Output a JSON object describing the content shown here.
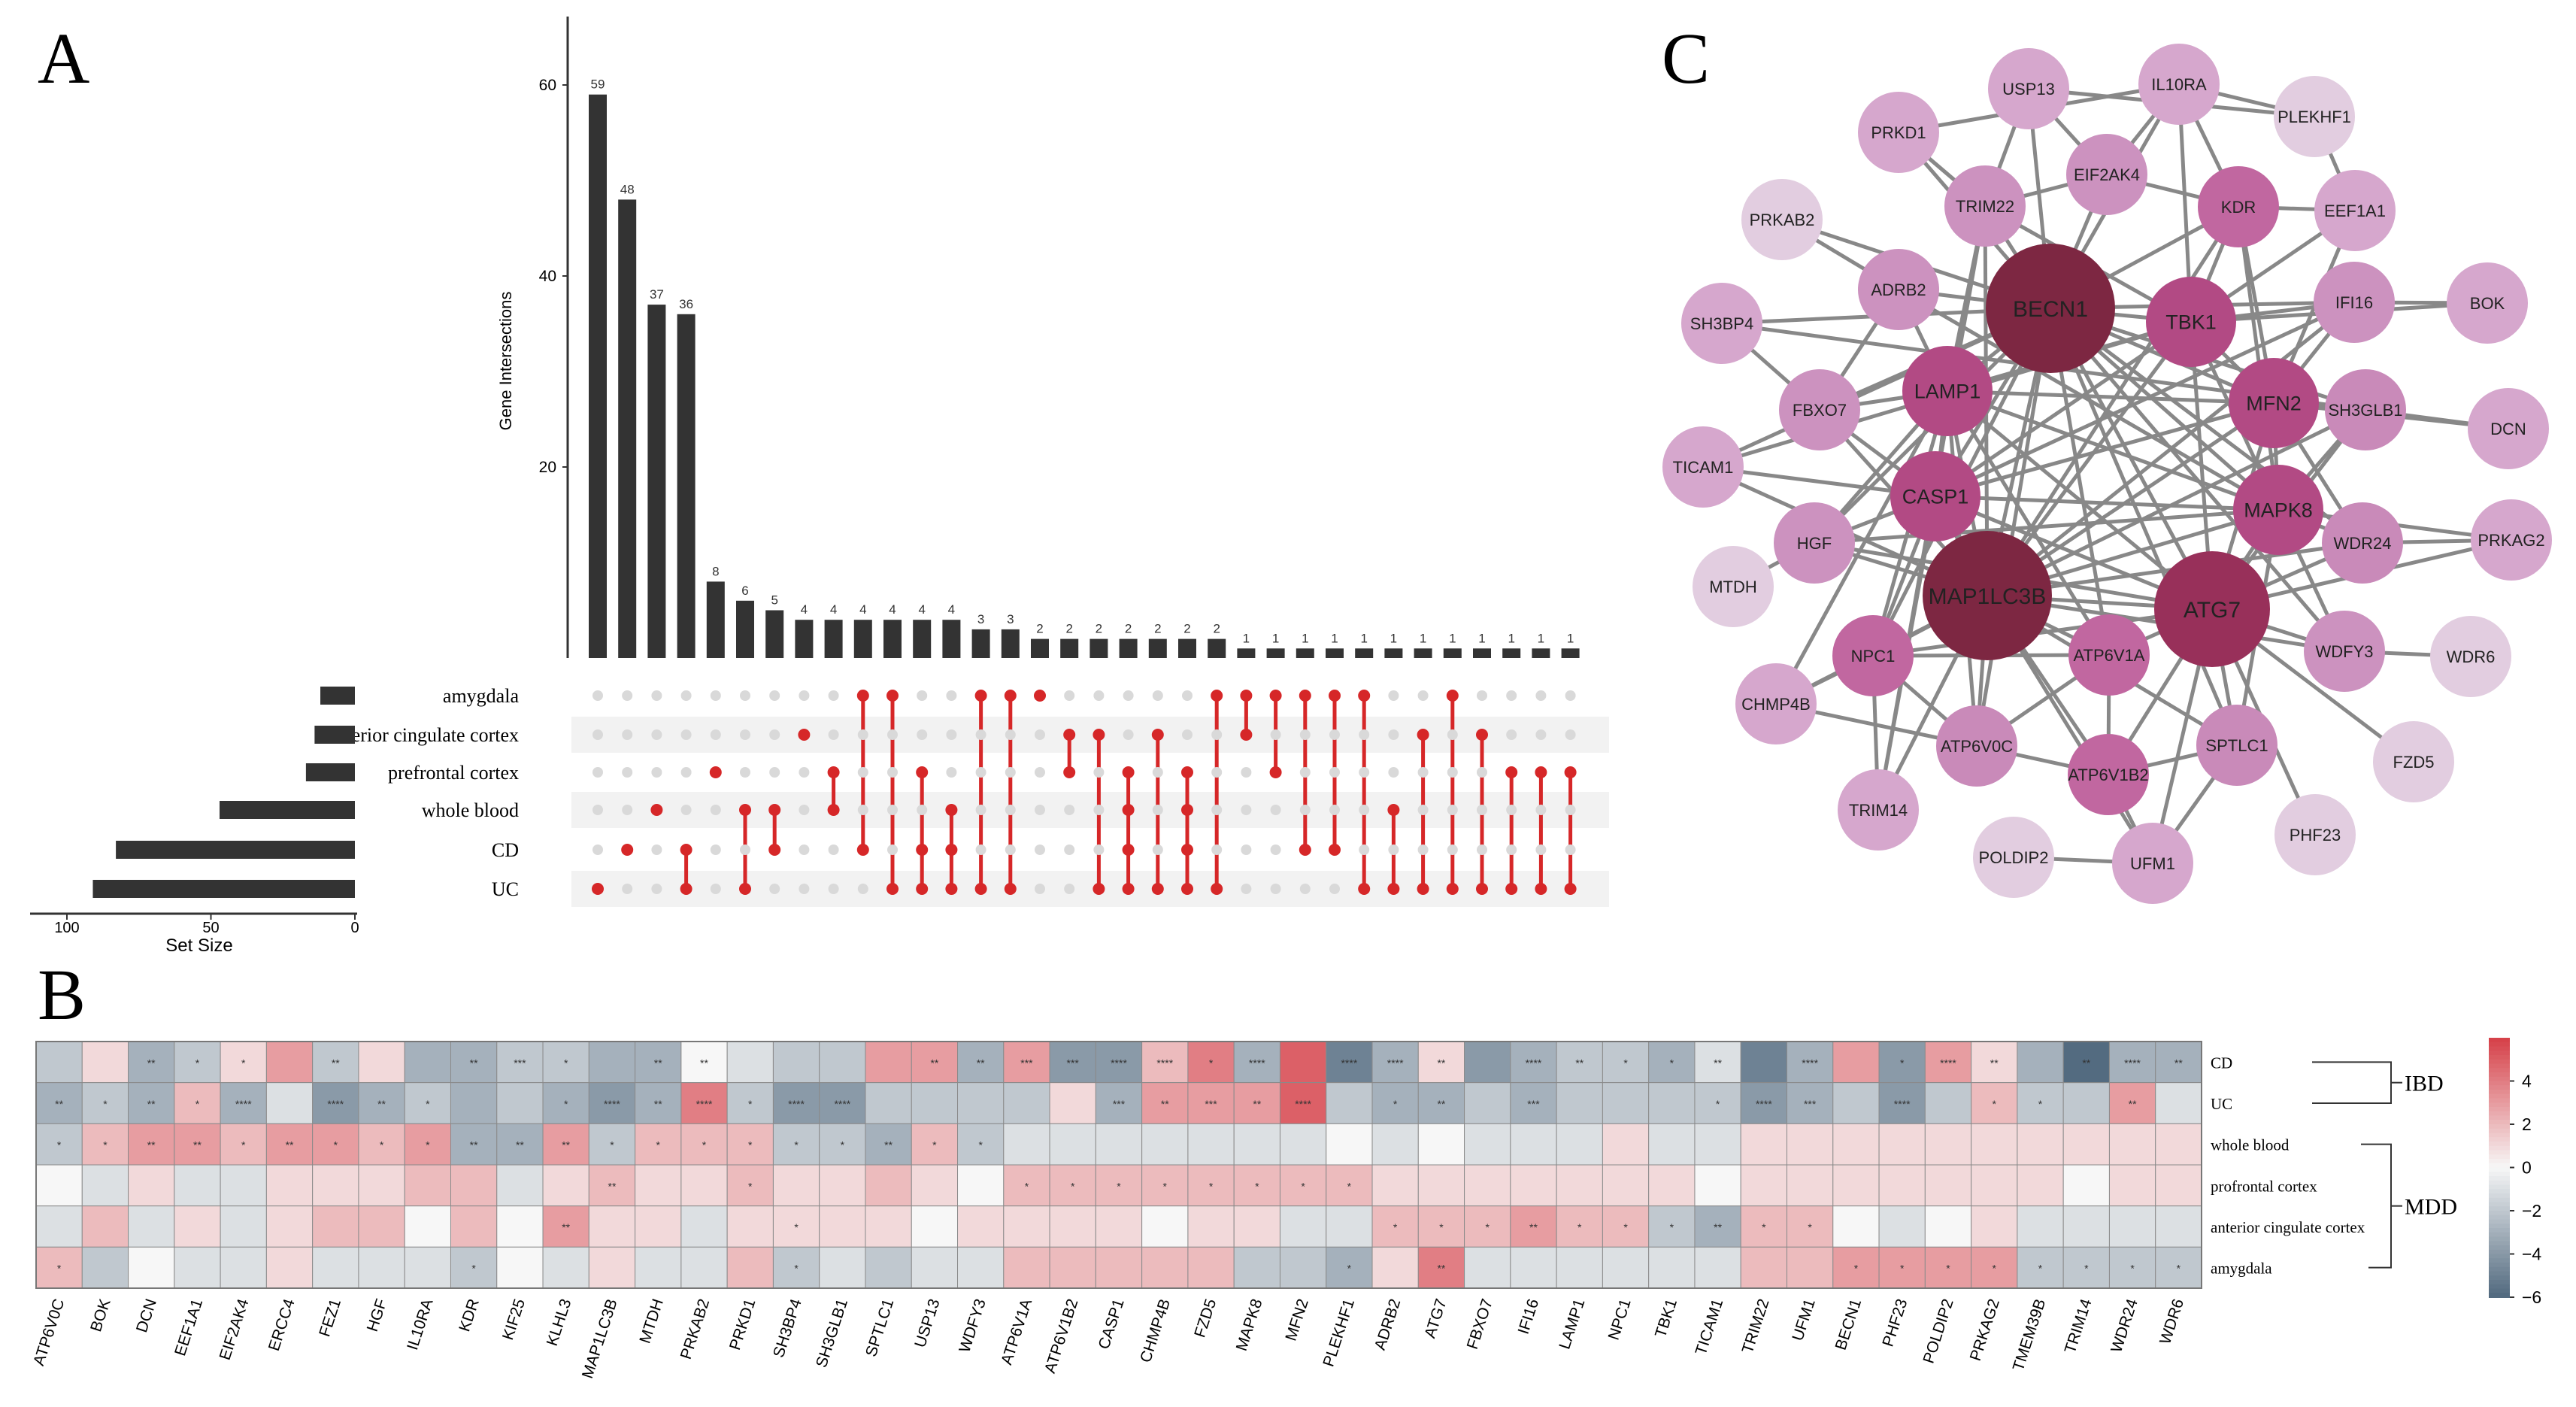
{
  "panel_labels": {
    "a": "A",
    "b": "B",
    "c": "C"
  },
  "upset": {
    "ylabel": "Gene Intersections",
    "yticks": [
      20,
      40,
      60
    ],
    "intersections": [
      {
        "count": 59,
        "sets": [
          "UC"
        ]
      },
      {
        "count": 48,
        "sets": [
          "CD"
        ]
      },
      {
        "count": 37,
        "sets": [
          "whole blood"
        ]
      },
      {
        "count": 36,
        "sets": [
          "CD",
          "UC"
        ]
      },
      {
        "count": 8,
        "sets": [
          "prefrontal cortex"
        ]
      },
      {
        "count": 6,
        "sets": [
          "whole blood",
          "UC"
        ]
      },
      {
        "count": 5,
        "sets": [
          "whole blood",
          "CD"
        ]
      },
      {
        "count": 4,
        "sets": [
          "anterior cingulate cortex"
        ]
      },
      {
        "count": 4,
        "sets": [
          "prefrontal cortex",
          "whole blood"
        ]
      },
      {
        "count": 4,
        "sets": [
          "amygdala",
          "CD"
        ]
      },
      {
        "count": 4,
        "sets": [
          "amygdala",
          "UC"
        ]
      },
      {
        "count": 4,
        "sets": [
          "prefrontal cortex",
          "CD",
          "UC"
        ]
      },
      {
        "count": 4,
        "sets": [
          "whole blood",
          "CD",
          "UC"
        ]
      },
      {
        "count": 3,
        "sets": [
          "amygdala",
          "UC"
        ]
      },
      {
        "count": 3,
        "sets": [
          "amygdala",
          "UC"
        ]
      },
      {
        "count": 2,
        "sets": [
          "amygdala"
        ]
      },
      {
        "count": 2,
        "sets": [
          "anterior cingulate cortex",
          "prefrontal cortex"
        ]
      },
      {
        "count": 2,
        "sets": [
          "anterior cingulate cortex",
          "UC"
        ]
      },
      {
        "count": 2,
        "sets": [
          "prefrontal cortex",
          "whole blood",
          "CD",
          "UC"
        ]
      },
      {
        "count": 2,
        "sets": [
          "anterior cingulate cortex",
          "UC"
        ]
      },
      {
        "count": 2,
        "sets": [
          "prefrontal cortex",
          "whole blood",
          "CD",
          "UC"
        ]
      },
      {
        "count": 2,
        "sets": [
          "amygdala",
          "UC"
        ]
      },
      {
        "count": 1,
        "sets": [
          "amygdala",
          "anterior cingulate cortex"
        ]
      },
      {
        "count": 1,
        "sets": [
          "amygdala",
          "prefrontal cortex"
        ]
      },
      {
        "count": 1,
        "sets": [
          "amygdala",
          "CD"
        ]
      },
      {
        "count": 1,
        "sets": [
          "amygdala",
          "CD"
        ]
      },
      {
        "count": 1,
        "sets": [
          "amygdala",
          "UC"
        ]
      },
      {
        "count": 1,
        "sets": [
          "whole blood",
          "UC"
        ]
      },
      {
        "count": 1,
        "sets": [
          "anterior cingulate cortex",
          "UC"
        ]
      },
      {
        "count": 1,
        "sets": [
          "amygdala",
          "UC"
        ]
      },
      {
        "count": 1,
        "sets": [
          "anterior cingulate cortex",
          "UC"
        ]
      },
      {
        "count": 1,
        "sets": [
          "prefrontal cortex",
          "UC"
        ]
      },
      {
        "count": 1,
        "sets": [
          "prefrontal cortex",
          "UC"
        ]
      },
      {
        "count": 1,
        "sets": [
          "prefrontal cortex",
          "UC"
        ]
      }
    ],
    "sets": [
      {
        "name": "amygdala",
        "size": 12
      },
      {
        "name": "anterior cingulate cortex",
        "size": 14
      },
      {
        "name": "prefrontal cortex",
        "size": 17
      },
      {
        "name": "whole blood",
        "size": 47
      },
      {
        "name": "CD",
        "size": 83
      },
      {
        "name": "UC",
        "size": 91
      }
    ],
    "setsize_label": "Set Size",
    "setsize_ticks": [
      100,
      50,
      0
    ],
    "colors": {
      "bar": "#333333",
      "dot_on": "#d62728",
      "dot_off": "#d9d9d9",
      "stripe": "#f2f2f2"
    }
  },
  "network": {
    "nodes": [
      {
        "id": "BECN1",
        "size": "xl",
        "color": "#7d2742"
      },
      {
        "id": "MAP1LC3B",
        "size": "xl",
        "color": "#7d2742"
      },
      {
        "id": "ATG7",
        "size": "l",
        "color": "#98305a"
      },
      {
        "id": "TBK1",
        "size": "m",
        "color": "#b24a84"
      },
      {
        "id": "LAMP1",
        "size": "m",
        "color": "#b24a84"
      },
      {
        "id": "MFN2",
        "size": "m",
        "color": "#b24a84"
      },
      {
        "id": "CASP1",
        "size": "m",
        "color": "#b24a84"
      },
      {
        "id": "MAPK8",
        "size": "m",
        "color": "#b24a84"
      },
      {
        "id": "NPC1",
        "size": "s",
        "color": "#c167a0"
      },
      {
        "id": "ATP6V1A",
        "size": "s",
        "color": "#c167a0"
      },
      {
        "id": "ATP6V1B2",
        "size": "s",
        "color": "#c167a0"
      },
      {
        "id": "KDR",
        "size": "s",
        "color": "#c167a0"
      },
      {
        "id": "SPTLC1",
        "size": "s",
        "color": "#c98ab9"
      },
      {
        "id": "ATP6V0C",
        "size": "s",
        "color": "#c98ab9"
      },
      {
        "id": "WDR24",
        "size": "s",
        "color": "#c98ab9"
      },
      {
        "id": "SH3GLB1",
        "size": "s",
        "color": "#c98ab9"
      },
      {
        "id": "TRIM22",
        "size": "s",
        "color": "#cc92bf"
      },
      {
        "id": "EIF2AK4",
        "size": "s",
        "color": "#cc92bf"
      },
      {
        "id": "ADRB2",
        "size": "s",
        "color": "#cc92bf"
      },
      {
        "id": "FBXO7",
        "size": "s",
        "color": "#cc92bf"
      },
      {
        "id": "HGF",
        "size": "s",
        "color": "#cc92bf"
      },
      {
        "id": "IFI16",
        "size": "s",
        "color": "#cc92bf"
      },
      {
        "id": "WDFY3",
        "size": "s",
        "color": "#cc92bf"
      },
      {
        "id": "USP13",
        "size": "s",
        "color": "#d6a7cd"
      },
      {
        "id": "IL10RA",
        "size": "s",
        "color": "#d6a7cd"
      },
      {
        "id": "EEF1A1",
        "size": "s",
        "color": "#d6a7cd"
      },
      {
        "id": "BOK",
        "size": "s",
        "color": "#d6a7cd"
      },
      {
        "id": "PRKD1",
        "size": "s",
        "color": "#d6a7cd"
      },
      {
        "id": "SH3BP4",
        "size": "s",
        "color": "#d6a7cd"
      },
      {
        "id": "TICAM1",
        "size": "s",
        "color": "#d6a7cd"
      },
      {
        "id": "CHMP4B",
        "size": "s",
        "color": "#d6a7cd"
      },
      {
        "id": "TRIM14",
        "size": "s",
        "color": "#d6a7cd"
      },
      {
        "id": "UFM1",
        "size": "s",
        "color": "#d6a7cd"
      },
      {
        "id": "PRKAG2",
        "size": "s",
        "color": "#d6a7cd"
      },
      {
        "id": "DCN",
        "size": "s",
        "color": "#d6a7cd"
      },
      {
        "id": "PLEKHF1",
        "size": "s",
        "color": "#e2cde0"
      },
      {
        "id": "PRKAB2",
        "size": "s",
        "color": "#e2cde0"
      },
      {
        "id": "MTDH",
        "size": "s",
        "color": "#e2cde0"
      },
      {
        "id": "WDR6",
        "size": "s",
        "color": "#e2cde0"
      },
      {
        "id": "FZD5",
        "size": "s",
        "color": "#e2cde0"
      },
      {
        "id": "PHF23",
        "size": "s",
        "color": "#e2cde0"
      },
      {
        "id": "POLDIP2",
        "size": "s",
        "color": "#e2cde0"
      }
    ],
    "edge_color": "#888888"
  },
  "heatmap": {
    "genes": [
      "ATP6V0C",
      "BOK",
      "DCN",
      "EEF1A1",
      "EIF2AK4",
      "ERCC4",
      "FEZ1",
      "HGF",
      "IL10RA",
      "KDR",
      "KIF25",
      "KLHL3",
      "MAP1LC3B",
      "MTDH",
      "PRKAB2",
      "PRKD1",
      "SH3BP4",
      "SH3GLB1",
      "SPTLC1",
      "USP13",
      "WDFY3",
      "ATP6V1A",
      "ATP6V1B2",
      "CASP1",
      "CHMP4B",
      "FZD5",
      "MAPK8",
      "MFN2",
      "PLEKHF1",
      "ADRB2",
      "ATG7",
      "FBXO7",
      "IFI16",
      "LAMP1",
      "NPC1",
      "TBK1",
      "TICAM1",
      "TRIM22",
      "UFM1",
      "BECN1",
      "PHF23",
      "POLDIP2",
      "PRKAG2",
      "TMEM39B",
      "TRIM14",
      "WDR24",
      "WDR6"
    ],
    "rows": [
      "CD",
      "UC",
      "whole blood",
      "profrontal cortex",
      "anterior cingulate cortex",
      "amygdala"
    ],
    "values": [
      [
        -2,
        1,
        -3,
        -2,
        1,
        3,
        -2,
        1,
        -3,
        -3,
        -2,
        -2,
        -3,
        -3,
        0,
        -1,
        -2,
        -2,
        3,
        3,
        -3,
        3,
        -4,
        -4,
        2,
        4,
        -3,
        5,
        -5,
        -3,
        1,
        -4,
        -3,
        -2,
        -2,
        -3,
        -1,
        -5,
        -3,
        3,
        -4,
        3,
        1,
        -3,
        -6,
        -3,
        -3
      ],
      [
        -3,
        -2,
        -3,
        2,
        -3,
        -1,
        -4,
        -3,
        -2,
        -3,
        -2,
        -3,
        -4,
        -3,
        4,
        -2,
        -4,
        -4,
        -2,
        -2,
        -2,
        -2,
        1,
        -3,
        3,
        3,
        3,
        5,
        -2,
        -3,
        -3,
        -2,
        -3,
        -2,
        -2,
        -2,
        -2,
        -4,
        -3,
        -2,
        -4,
        -2,
        2,
        -2,
        -2,
        3,
        -1
      ],
      [
        -2,
        2,
        3,
        3,
        2,
        3,
        3,
        2,
        3,
        -3,
        -3,
        3,
        -2,
        2,
        2,
        2,
        -2,
        -2,
        -3,
        2,
        -2,
        -1,
        -1,
        -1,
        -1,
        -1,
        -1,
        -1,
        0,
        -1,
        0,
        -1,
        -1,
        -1,
        1,
        -1,
        -1,
        1,
        1,
        1,
        1,
        1,
        1,
        1,
        1,
        1,
        1
      ],
      [
        0,
        -1,
        1,
        -1,
        -1,
        1,
        1,
        1,
        2,
        2,
        -1,
        1,
        2,
        1,
        1,
        2,
        1,
        1,
        2,
        1,
        0,
        2,
        2,
        2,
        2,
        2,
        2,
        2,
        2,
        1,
        1,
        1,
        1,
        1,
        1,
        1,
        0,
        1,
        1,
        1,
        1,
        1,
        1,
        1,
        0,
        1,
        1
      ],
      [
        -1,
        2,
        -1,
        1,
        -1,
        1,
        2,
        2,
        0,
        2,
        0,
        3,
        1,
        1,
        -1,
        1,
        1,
        1,
        1,
        0,
        1,
        1,
        1,
        1,
        0,
        1,
        1,
        -1,
        -1,
        2,
        2,
        2,
        3,
        2,
        2,
        -2,
        -3,
        2,
        2,
        0,
        -1,
        0,
        1,
        -1,
        -1,
        -1,
        -1
      ],
      [
        2,
        -2,
        0,
        -1,
        -1,
        1,
        -1,
        -1,
        -1,
        -2,
        0,
        -1,
        1,
        -1,
        -1,
        2,
        -2,
        -1,
        -2,
        -1,
        -1,
        2,
        2,
        2,
        2,
        2,
        -2,
        -2,
        -3,
        1,
        4,
        -1,
        -1,
        -1,
        -1,
        -1,
        -1,
        2,
        2,
        3,
        3,
        3,
        3,
        -2,
        -2,
        -2,
        -2
      ]
    ],
    "stars": [
      [
        "",
        "",
        "**",
        "*",
        "*",
        "",
        "**",
        "",
        "",
        "**",
        "***",
        "*",
        "",
        "**",
        "**",
        "",
        "",
        "",
        "",
        "**",
        "**",
        "***",
        "***",
        "****",
        "****",
        "*",
        "****",
        "",
        "****",
        "****",
        "**",
        "",
        "****",
        "**",
        "*",
        "*",
        "**",
        "",
        "****",
        "",
        "*",
        "****",
        "**",
        "",
        "**",
        "****",
        "**"
      ],
      [
        "**",
        "*",
        "**",
        "*",
        "****",
        "",
        "****",
        "**",
        "*",
        "",
        "",
        "*",
        "****",
        "**",
        "****",
        "*",
        "****",
        "****",
        "",
        "",
        "",
        "",
        "",
        "***",
        "**",
        "***",
        "**",
        "****",
        "",
        "*",
        "**",
        "",
        "***",
        "",
        "",
        "",
        "*",
        "****",
        "***",
        "",
        "****",
        "",
        "*",
        "*",
        "",
        "**",
        ""
      ],
      [
        "*",
        "*",
        "**",
        "**",
        "*",
        "**",
        "*",
        "*",
        "*",
        "**",
        "**",
        "**",
        "*",
        "*",
        "*",
        "*",
        "*",
        "*",
        "**",
        "*",
        "*",
        "",
        "",
        "",
        "",
        "",
        "",
        "",
        "",
        "",
        "",
        "",
        "",
        "",
        "",
        "",
        "",
        "",
        "",
        "",
        "",
        "",
        "",
        "",
        "",
        "",
        ""
      ],
      [
        "",
        "",
        "",
        "",
        "",
        "",
        "",
        "",
        "",
        "",
        "",
        "",
        "**",
        "",
        "",
        "*",
        "",
        "",
        "",
        "",
        "",
        "*",
        "*",
        "*",
        "*",
        "*",
        "*",
        "*",
        "*",
        "",
        "",
        "",
        "",
        "",
        "",
        "",
        "",
        "",
        "",
        "",
        "",
        "",
        "",
        "",
        "",
        "",
        ""
      ],
      [
        "",
        "",
        "",
        "",
        "",
        "",
        "",
        "",
        "",
        "",
        "",
        "**",
        "",
        "",
        "",
        "",
        "*",
        "",
        "",
        "",
        "",
        "",
        "",
        "",
        "",
        "",
        "",
        "",
        "",
        "*",
        "*",
        "*",
        "**",
        "*",
        "*",
        "*",
        "**",
        "*",
        "*",
        "",
        "",
        "",
        "",
        "",
        "",
        "",
        ""
      ],
      [
        "*",
        "",
        "",
        "",
        "",
        "",
        "",
        "",
        "",
        "*",
        "",
        "",
        "",
        "",
        "",
        "",
        "*",
        "",
        "",
        "",
        "",
        "",
        "",
        "",
        "",
        "",
        "",
        "",
        "*",
        "",
        "**",
        "",
        "",
        "",
        "",
        "",
        "",
        "",
        "",
        "*",
        "*",
        "*",
        "*",
        "*",
        "*",
        "*",
        "*"
      ]
    ],
    "colorbar_ticks": [
      4,
      2,
      0,
      -2,
      -4,
      -6
    ],
    "colorbar_range": [
      -6,
      6
    ],
    "groups": [
      {
        "label": "IBD",
        "rows": [
          "CD",
          "UC"
        ]
      },
      {
        "label": "MDD",
        "rows": [
          "whole blood",
          "profrontal cortex",
          "anterior cingulate cortex",
          "amygdala"
        ]
      }
    ]
  }
}
